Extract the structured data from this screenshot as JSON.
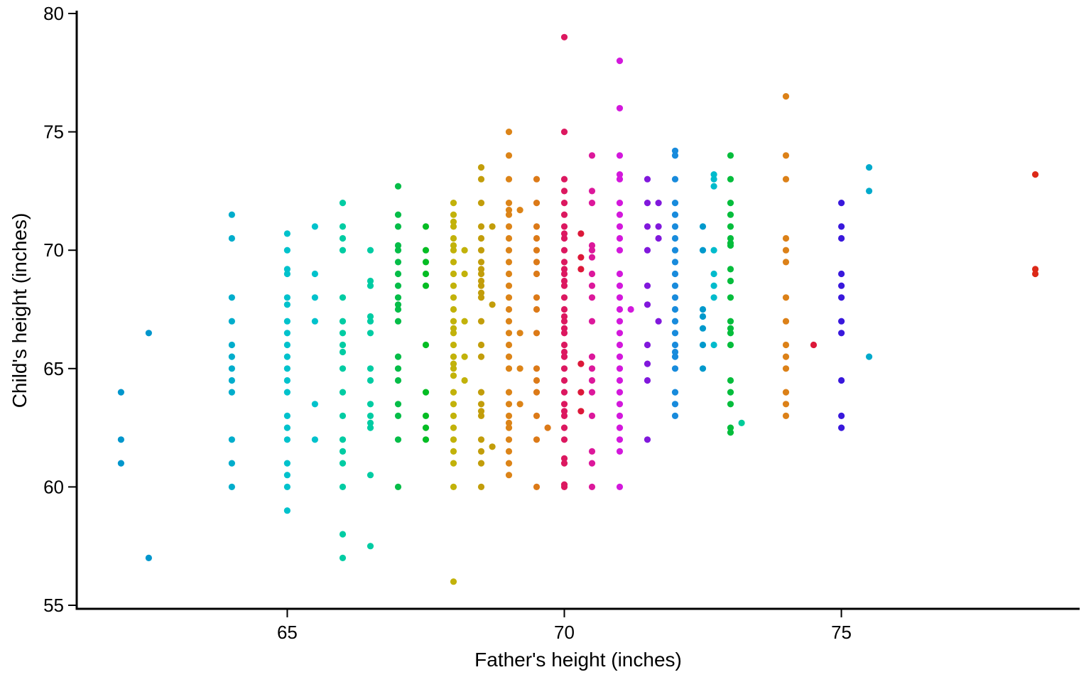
{
  "chart_data": {
    "type": "scatter",
    "title": "",
    "xlabel": "Father's height (inches)",
    "ylabel": "Child's height (inches)",
    "xlim": [
      61.2,
      79.3
    ],
    "ylim": [
      55,
      80
    ],
    "xticks": [
      65,
      70,
      75
    ],
    "yticks": [
      55,
      60,
      65,
      70,
      75,
      80
    ],
    "grid": false,
    "legend": "none",
    "color_scale": "hue by father's height",
    "points": [
      [
        62,
        64
      ],
      [
        62,
        62
      ],
      [
        62,
        61
      ],
      [
        62.5,
        66.5
      ],
      [
        62.5,
        57
      ],
      [
        64,
        71.5
      ],
      [
        64,
        70.5
      ],
      [
        64,
        68
      ],
      [
        64,
        67
      ],
      [
        64,
        66
      ],
      [
        64,
        65.5
      ],
      [
        64,
        65
      ],
      [
        64,
        64.5
      ],
      [
        64,
        64
      ],
      [
        64,
        62
      ],
      [
        64,
        61
      ],
      [
        64,
        60
      ],
      [
        65,
        70.7
      ],
      [
        65,
        70
      ],
      [
        65,
        69.2
      ],
      [
        65,
        69
      ],
      [
        65,
        68
      ],
      [
        65,
        67.7
      ],
      [
        65,
        67
      ],
      [
        65,
        66.5
      ],
      [
        65,
        66
      ],
      [
        65,
        65.5
      ],
      [
        65,
        65
      ],
      [
        65,
        64.5
      ],
      [
        65,
        64
      ],
      [
        65,
        63
      ],
      [
        65,
        62.5
      ],
      [
        65,
        62
      ],
      [
        65,
        61
      ],
      [
        65,
        60.5
      ],
      [
        65,
        60
      ],
      [
        65,
        59
      ],
      [
        65.5,
        71
      ],
      [
        65.5,
        69
      ],
      [
        65.5,
        68
      ],
      [
        65.5,
        67
      ],
      [
        65.5,
        63.5
      ],
      [
        65.5,
        62
      ],
      [
        66,
        72
      ],
      [
        66,
        71
      ],
      [
        66,
        70.5
      ],
      [
        66,
        70
      ],
      [
        66,
        68
      ],
      [
        66,
        67
      ],
      [
        66,
        66.5
      ],
      [
        66,
        66
      ],
      [
        66,
        65.7
      ],
      [
        66,
        65
      ],
      [
        66,
        64
      ],
      [
        66,
        63
      ],
      [
        66,
        62
      ],
      [
        66,
        61.5
      ],
      [
        66,
        61
      ],
      [
        66,
        60
      ],
      [
        66,
        58
      ],
      [
        66,
        57
      ],
      [
        66.5,
        70
      ],
      [
        66.5,
        68.7
      ],
      [
        66.5,
        68.5
      ],
      [
        66.5,
        67.2
      ],
      [
        66.5,
        67
      ],
      [
        66.5,
        66.5
      ],
      [
        66.5,
        65
      ],
      [
        66.5,
        64.5
      ],
      [
        66.5,
        63.5
      ],
      [
        66.5,
        63
      ],
      [
        66.5,
        62.7
      ],
      [
        66.5,
        62.5
      ],
      [
        66.5,
        60.5
      ],
      [
        66.5,
        57.5
      ],
      [
        67,
        72.7
      ],
      [
        67,
        71.5
      ],
      [
        67,
        71
      ],
      [
        67,
        70.2
      ],
      [
        67,
        70
      ],
      [
        67,
        69.5
      ],
      [
        67,
        69
      ],
      [
        67,
        68.5
      ],
      [
        67,
        68
      ],
      [
        67,
        67.7
      ],
      [
        67,
        67.5
      ],
      [
        67,
        67
      ],
      [
        67,
        65.5
      ],
      [
        67,
        65
      ],
      [
        67,
        64.5
      ],
      [
        67,
        63.5
      ],
      [
        67,
        63
      ],
      [
        67,
        62
      ],
      [
        67,
        60
      ],
      [
        67.5,
        71
      ],
      [
        67.5,
        70
      ],
      [
        67.5,
        69.5
      ],
      [
        67.5,
        69
      ],
      [
        67.5,
        68.5
      ],
      [
        67.5,
        66
      ],
      [
        67.5,
        64
      ],
      [
        67.5,
        63
      ],
      [
        67.5,
        62.5
      ],
      [
        67.5,
        62
      ],
      [
        68,
        72
      ],
      [
        68,
        71.5
      ],
      [
        68,
        71.2
      ],
      [
        68,
        71
      ],
      [
        68,
        70.5
      ],
      [
        68,
        70.2
      ],
      [
        68,
        70
      ],
      [
        68,
        69.5
      ],
      [
        68,
        69
      ],
      [
        68,
        68.5
      ],
      [
        68,
        68
      ],
      [
        68,
        67.5
      ],
      [
        68,
        67
      ],
      [
        68,
        66.7
      ],
      [
        68,
        66.5
      ],
      [
        68,
        66
      ],
      [
        68,
        65.5
      ],
      [
        68,
        65.2
      ],
      [
        68,
        65
      ],
      [
        68,
        64.7
      ],
      [
        68,
        64
      ],
      [
        68,
        63.5
      ],
      [
        68,
        63
      ],
      [
        68,
        62.5
      ],
      [
        68,
        62
      ],
      [
        68,
        61.5
      ],
      [
        68,
        61
      ],
      [
        68,
        60
      ],
      [
        68,
        56
      ],
      [
        68.2,
        70
      ],
      [
        68.2,
        69
      ],
      [
        68.2,
        67
      ],
      [
        68.2,
        65.5
      ],
      [
        68.2,
        64.5
      ],
      [
        68.5,
        73.5
      ],
      [
        68.5,
        73
      ],
      [
        68.5,
        72
      ],
      [
        68.5,
        71
      ],
      [
        68.5,
        70.5
      ],
      [
        68.5,
        70
      ],
      [
        68.5,
        69.5
      ],
      [
        68.5,
        69.2
      ],
      [
        68.5,
        69
      ],
      [
        68.5,
        68.7
      ],
      [
        68.5,
        68.5
      ],
      [
        68.5,
        68.2
      ],
      [
        68.5,
        68
      ],
      [
        68.5,
        67
      ],
      [
        68.5,
        66
      ],
      [
        68.5,
        65.5
      ],
      [
        68.5,
        64
      ],
      [
        68.5,
        63.5
      ],
      [
        68.5,
        63.2
      ],
      [
        68.5,
        63
      ],
      [
        68.5,
        62
      ],
      [
        68.5,
        61.5
      ],
      [
        68.5,
        61
      ],
      [
        68.5,
        60
      ],
      [
        68.7,
        71
      ],
      [
        68.7,
        67.7
      ],
      [
        68.7,
        61.7
      ],
      [
        69,
        75
      ],
      [
        69,
        74
      ],
      [
        69,
        73
      ],
      [
        69,
        72
      ],
      [
        69,
        71.7
      ],
      [
        69,
        71.5
      ],
      [
        69,
        71
      ],
      [
        69,
        70.5
      ],
      [
        69,
        70
      ],
      [
        69,
        69.5
      ],
      [
        69,
        69
      ],
      [
        69,
        68.5
      ],
      [
        69,
        68
      ],
      [
        69,
        67.5
      ],
      [
        69,
        67
      ],
      [
        69,
        66.5
      ],
      [
        69,
        66
      ],
      [
        69,
        65.5
      ],
      [
        69,
        65
      ],
      [
        69,
        64
      ],
      [
        69,
        63.5
      ],
      [
        69,
        63
      ],
      [
        69,
        62.7
      ],
      [
        69,
        62.5
      ],
      [
        69,
        62
      ],
      [
        69,
        61.5
      ],
      [
        69,
        61
      ],
      [
        69,
        60.5
      ],
      [
        69.2,
        71.7
      ],
      [
        69.2,
        66.5
      ],
      [
        69.2,
        65
      ],
      [
        69.2,
        63.5
      ],
      [
        69.5,
        73
      ],
      [
        69.5,
        72
      ],
      [
        69.5,
        71
      ],
      [
        69.5,
        70.5
      ],
      [
        69.5,
        70
      ],
      [
        69.5,
        69.5
      ],
      [
        69.5,
        69
      ],
      [
        69.5,
        68
      ],
      [
        69.5,
        67.5
      ],
      [
        69.5,
        66.5
      ],
      [
        69.5,
        65
      ],
      [
        69.5,
        64.5
      ],
      [
        69.5,
        64
      ],
      [
        69.5,
        63
      ],
      [
        69.5,
        62
      ],
      [
        69.5,
        60
      ],
      [
        69.7,
        62.5
      ],
      [
        70,
        79
      ],
      [
        70,
        75
      ],
      [
        70,
        73
      ],
      [
        70,
        72.5
      ],
      [
        70,
        72
      ],
      [
        70,
        71.5
      ],
      [
        70,
        71
      ],
      [
        70,
        70.7
      ],
      [
        70,
        70.5
      ],
      [
        70,
        70
      ],
      [
        70,
        69.5
      ],
      [
        70,
        69.2
      ],
      [
        70,
        69
      ],
      [
        70,
        68.7
      ],
      [
        70,
        68.5
      ],
      [
        70,
        68
      ],
      [
        70,
        67.5
      ],
      [
        70,
        67.2
      ],
      [
        70,
        67
      ],
      [
        70,
        66.7
      ],
      [
        70,
        66.5
      ],
      [
        70,
        66
      ],
      [
        70,
        65.7
      ],
      [
        70,
        65.5
      ],
      [
        70,
        65
      ],
      [
        70,
        64.5
      ],
      [
        70,
        64
      ],
      [
        70,
        63.5
      ],
      [
        70,
        63.2
      ],
      [
        70,
        63
      ],
      [
        70,
        62.5
      ],
      [
        70,
        62
      ],
      [
        70,
        61.2
      ],
      [
        70,
        61
      ],
      [
        70,
        60.1
      ],
      [
        70,
        60
      ],
      [
        70.3,
        70.7
      ],
      [
        70.3,
        69.7
      ],
      [
        70.3,
        69.2
      ],
      [
        70.3,
        65.2
      ],
      [
        70.3,
        64
      ],
      [
        70.3,
        63.2
      ],
      [
        70.5,
        74
      ],
      [
        70.5,
        72.5
      ],
      [
        70.5,
        72
      ],
      [
        70.5,
        70.2
      ],
      [
        70.5,
        70
      ],
      [
        70.5,
        69.7
      ],
      [
        70.5,
        69
      ],
      [
        70.5,
        68.5
      ],
      [
        70.5,
        68
      ],
      [
        70.5,
        67
      ],
      [
        70.5,
        65.5
      ],
      [
        70.5,
        65
      ],
      [
        70.5,
        64.5
      ],
      [
        70.5,
        64
      ],
      [
        70.5,
        63
      ],
      [
        70.5,
        61.5
      ],
      [
        70.5,
        61
      ],
      [
        70.5,
        60
      ],
      [
        71,
        78
      ],
      [
        71,
        76
      ],
      [
        71,
        74
      ],
      [
        71,
        73.2
      ],
      [
        71,
        73
      ],
      [
        71,
        72
      ],
      [
        71,
        71.5
      ],
      [
        71,
        71
      ],
      [
        71,
        70.5
      ],
      [
        71,
        70
      ],
      [
        71,
        69
      ],
      [
        71,
        68.5
      ],
      [
        71,
        68
      ],
      [
        71,
        67.5
      ],
      [
        71,
        67
      ],
      [
        71,
        66.5
      ],
      [
        71,
        66
      ],
      [
        71,
        65.5
      ],
      [
        71,
        65
      ],
      [
        71,
        64.5
      ],
      [
        71,
        64
      ],
      [
        71,
        63.5
      ],
      [
        71,
        63
      ],
      [
        71,
        62.5
      ],
      [
        71,
        62
      ],
      [
        71,
        61.5
      ],
      [
        71,
        60
      ],
      [
        71.2,
        67.5
      ],
      [
        71.5,
        73
      ],
      [
        71.5,
        72
      ],
      [
        71.5,
        71
      ],
      [
        71.5,
        70
      ],
      [
        71.5,
        68.5
      ],
      [
        71.5,
        67.7
      ],
      [
        71.5,
        66
      ],
      [
        71.5,
        65.2
      ],
      [
        71.5,
        64.5
      ],
      [
        71.5,
        62
      ],
      [
        71.7,
        72
      ],
      [
        71.7,
        71
      ],
      [
        71.7,
        70.5
      ],
      [
        71.7,
        67
      ],
      [
        72,
        74.2
      ],
      [
        72,
        74
      ],
      [
        72,
        73
      ],
      [
        72,
        72
      ],
      [
        72,
        71.5
      ],
      [
        72,
        71
      ],
      [
        72,
        70.5
      ],
      [
        72,
        70
      ],
      [
        72,
        69.5
      ],
      [
        72,
        69
      ],
      [
        72,
        68.5
      ],
      [
        72,
        68
      ],
      [
        72,
        67.5
      ],
      [
        72,
        67
      ],
      [
        72,
        66.5
      ],
      [
        72,
        66
      ],
      [
        72,
        65.7
      ],
      [
        72,
        65.5
      ],
      [
        72,
        65
      ],
      [
        72,
        64
      ],
      [
        72,
        63.5
      ],
      [
        72,
        63
      ],
      [
        72.5,
        71
      ],
      [
        72.5,
        70
      ],
      [
        72.5,
        67.5
      ],
      [
        72.5,
        67.2
      ],
      [
        72.5,
        66.7
      ],
      [
        72.5,
        66
      ],
      [
        72.5,
        65
      ],
      [
        72.7,
        73.2
      ],
      [
        72.7,
        73
      ],
      [
        72.7,
        72.7
      ],
      [
        72.7,
        70
      ],
      [
        72.7,
        69
      ],
      [
        72.7,
        68.5
      ],
      [
        72.7,
        68
      ],
      [
        72.7,
        66
      ],
      [
        73,
        74
      ],
      [
        73,
        73
      ],
      [
        73,
        72
      ],
      [
        73,
        71.5
      ],
      [
        73,
        71
      ],
      [
        73,
        70.5
      ],
      [
        73,
        70.3
      ],
      [
        73,
        70.2
      ],
      [
        73,
        69.2
      ],
      [
        73,
        68.7
      ],
      [
        73,
        68
      ],
      [
        73,
        67
      ],
      [
        73,
        66.7
      ],
      [
        73,
        66.5
      ],
      [
        73,
        66
      ],
      [
        73,
        64.5
      ],
      [
        73,
        64
      ],
      [
        73,
        63.5
      ],
      [
        73,
        62.5
      ],
      [
        73,
        62.3
      ],
      [
        73.2,
        62.7
      ],
      [
        74,
        76.5
      ],
      [
        74,
        74
      ],
      [
        74,
        73
      ],
      [
        74,
        70.5
      ],
      [
        74,
        70
      ],
      [
        74,
        69.5
      ],
      [
        74,
        68
      ],
      [
        74,
        67
      ],
      [
        74,
        66
      ],
      [
        74,
        65.5
      ],
      [
        74,
        65
      ],
      [
        74,
        64
      ],
      [
        74,
        63.5
      ],
      [
        74,
        63
      ],
      [
        74.5,
        66
      ],
      [
        75,
        72
      ],
      [
        75,
        71
      ],
      [
        75,
        70.5
      ],
      [
        75,
        69
      ],
      [
        75,
        68.5
      ],
      [
        75,
        68
      ],
      [
        75,
        67
      ],
      [
        75,
        66.5
      ],
      [
        75,
        64.5
      ],
      [
        75,
        63
      ],
      [
        75,
        62.5
      ],
      [
        75.5,
        73.5
      ],
      [
        75.5,
        72.5
      ],
      [
        75.5,
        65.5
      ],
      [
        78.5,
        73.2
      ],
      [
        78.5,
        69.2
      ],
      [
        78.5,
        69
      ]
    ]
  }
}
